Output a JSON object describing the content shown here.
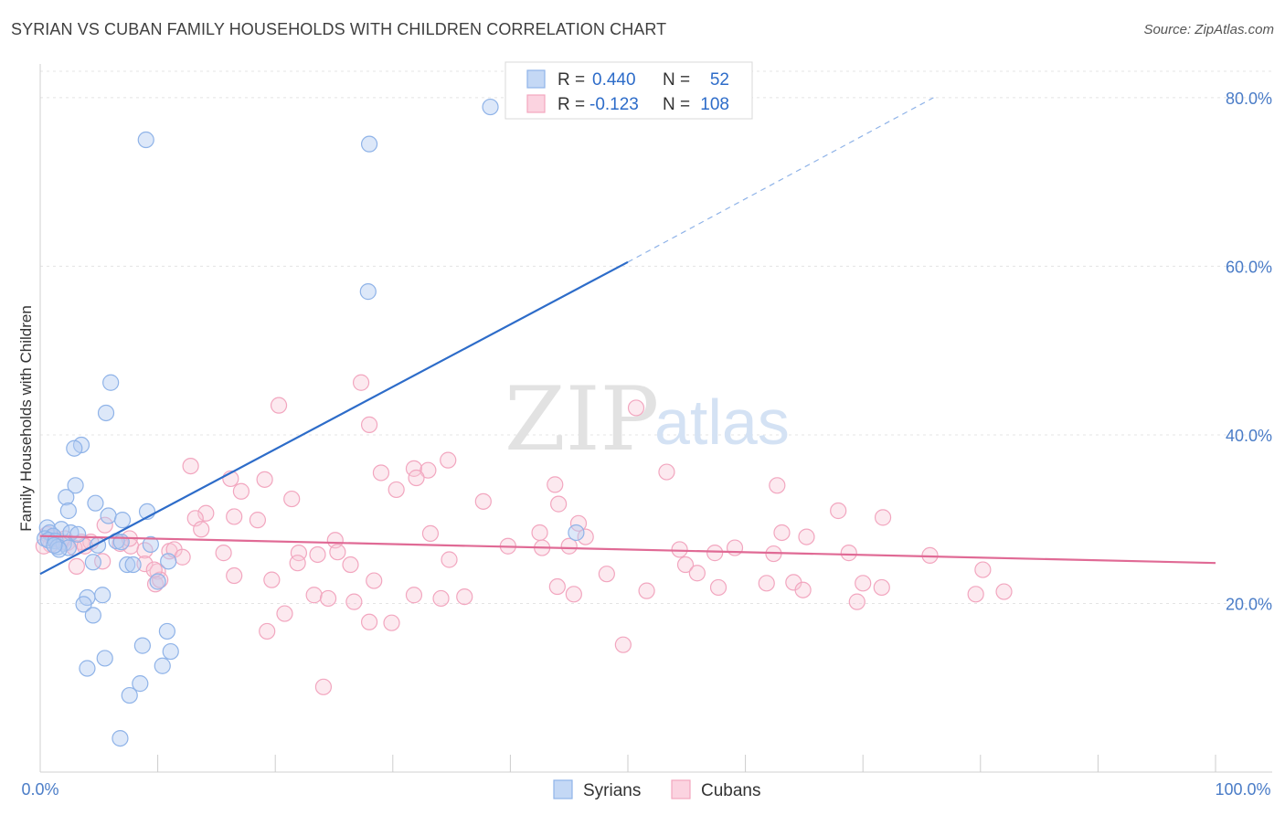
{
  "title": "SYRIAN VS CUBAN FAMILY HOUSEHOLDS WITH CHILDREN CORRELATION CHART",
  "source": "Source: ZipAtlas.com",
  "watermark": {
    "zip": "ZIP",
    "atlas": "atlas"
  },
  "legend_box": {
    "rows": [
      {
        "r_label": "R = ",
        "r_value": "0.440",
        "n_label": "N = ",
        "n_value": "52",
        "color": "#8fb3e8"
      },
      {
        "r_label": "R = ",
        "r_value": "-0.123",
        "n_label": "N = ",
        "n_value": "108",
        "color": "#f2a6bf"
      }
    ]
  },
  "chart_data": {
    "type": "scatter",
    "title": "SYRIAN VS CUBAN FAMILY HOUSEHOLDS WITH CHILDREN CORRELATION CHART",
    "xlabel": "",
    "ylabel": "Family Households with Children",
    "xlim": [
      0,
      100
    ],
    "ylim": [
      0,
      84
    ],
    "x_tick_labels": [
      "0.0%",
      "100.0%"
    ],
    "y_ticks": [
      20,
      40,
      60,
      80
    ],
    "y_tick_labels": [
      "20.0%",
      "40.0%",
      "60.0%",
      "80.0%"
    ],
    "grid": true,
    "legend_position": "bottom-center",
    "series": [
      {
        "name": "Syrians",
        "color": "#8fb3e8",
        "line_color": "#2d6cc9",
        "trend": {
          "x0": 0,
          "y0": 23.5,
          "x1": 50,
          "y1": 60.5,
          "dashed_to_x": 76,
          "dashed_to_y": 80
        },
        "points": [
          [
            38.3,
            78.9
          ],
          [
            9,
            75
          ],
          [
            28,
            74.5
          ],
          [
            27.9,
            57
          ],
          [
            6,
            46.2
          ],
          [
            5.6,
            42.6
          ],
          [
            3.5,
            38.8
          ],
          [
            2.9,
            38.4
          ],
          [
            3.0,
            34.0
          ],
          [
            2.2,
            32.6
          ],
          [
            4.7,
            31.9
          ],
          [
            2.4,
            31.0
          ],
          [
            9.1,
            30.9
          ],
          [
            5.8,
            30.4
          ],
          [
            7.0,
            29.9
          ],
          [
            0.6,
            29.0
          ],
          [
            1.8,
            28.8
          ],
          [
            0.8,
            28.4
          ],
          [
            2.6,
            28.4
          ],
          [
            3.2,
            28.2
          ],
          [
            1.1,
            28.0
          ],
          [
            0.4,
            27.7
          ],
          [
            0.7,
            27.5
          ],
          [
            1.3,
            27.4
          ],
          [
            6.5,
            27.4
          ],
          [
            6.9,
            27.3
          ],
          [
            2.0,
            27.1
          ],
          [
            9.4,
            27.0
          ],
          [
            4.9,
            26.9
          ],
          [
            1.5,
            26.7
          ],
          [
            2.4,
            26.6
          ],
          [
            1.6,
            26.4
          ],
          [
            45.6,
            28.4
          ],
          [
            10.9,
            25.0
          ],
          [
            4.5,
            24.9
          ],
          [
            7.4,
            24.6
          ],
          [
            7.9,
            24.6
          ],
          [
            10.0,
            22.6
          ],
          [
            5.3,
            21.0
          ],
          [
            4.0,
            20.7
          ],
          [
            3.7,
            19.9
          ],
          [
            4.5,
            18.6
          ],
          [
            10.8,
            16.7
          ],
          [
            8.7,
            15.0
          ],
          [
            11.1,
            14.3
          ],
          [
            5.5,
            13.5
          ],
          [
            10.4,
            12.6
          ],
          [
            4.0,
            12.3
          ],
          [
            8.5,
            10.5
          ],
          [
            7.6,
            9.1
          ],
          [
            6.8,
            4.0
          ],
          [
            1.2,
            26.9
          ]
        ]
      },
      {
        "name": "Cubans",
        "color": "#f2a6bf",
        "line_color": "#e06a95",
        "trend": {
          "x0": 0,
          "y0": 28.0,
          "x1": 100,
          "y1": 24.8
        },
        "points": [
          [
            27.3,
            46.2
          ],
          [
            20.3,
            43.5
          ],
          [
            50.7,
            43.2
          ],
          [
            28.0,
            41.2
          ],
          [
            12.8,
            36.3
          ],
          [
            34.7,
            37.0
          ],
          [
            31.8,
            36.0
          ],
          [
            33.0,
            35.8
          ],
          [
            29.0,
            35.5
          ],
          [
            53.3,
            35.6
          ],
          [
            16.2,
            34.8
          ],
          [
            19.1,
            34.7
          ],
          [
            32.0,
            34.9
          ],
          [
            30.3,
            33.5
          ],
          [
            17.1,
            33.3
          ],
          [
            43.8,
            34.1
          ],
          [
            62.7,
            34.0
          ],
          [
            21.4,
            32.4
          ],
          [
            37.7,
            32.1
          ],
          [
            44.1,
            31.8
          ],
          [
            14.1,
            30.7
          ],
          [
            16.5,
            30.3
          ],
          [
            13.2,
            30.1
          ],
          [
            18.5,
            29.9
          ],
          [
            67.9,
            31.0
          ],
          [
            71.7,
            30.2
          ],
          [
            45.8,
            29.5
          ],
          [
            5.5,
            29.3
          ],
          [
            13.7,
            28.8
          ],
          [
            33.2,
            28.3
          ],
          [
            42.5,
            28.4
          ],
          [
            46.4,
            27.9
          ],
          [
            63.1,
            28.4
          ],
          [
            65.2,
            27.9
          ],
          [
            25.1,
            27.5
          ],
          [
            3.5,
            27.3
          ],
          [
            6.8,
            27.1
          ],
          [
            7.7,
            26.8
          ],
          [
            39.8,
            26.8
          ],
          [
            42.7,
            26.6
          ],
          [
            45.0,
            26.8
          ],
          [
            54.4,
            26.4
          ],
          [
            57.4,
            26.0
          ],
          [
            59.1,
            26.6
          ],
          [
            8.9,
            26.3
          ],
          [
            11.0,
            26.2
          ],
          [
            11.4,
            26.4
          ],
          [
            15.6,
            26.0
          ],
          [
            22.0,
            26.0
          ],
          [
            23.6,
            25.8
          ],
          [
            25.3,
            26.1
          ],
          [
            62.4,
            25.9
          ],
          [
            68.8,
            26.0
          ],
          [
            75.7,
            25.7
          ],
          [
            5.3,
            25.0
          ],
          [
            3.1,
            24.4
          ],
          [
            8.9,
            24.7
          ],
          [
            12.1,
            25.5
          ],
          [
            21.9,
            24.8
          ],
          [
            26.4,
            24.6
          ],
          [
            34.8,
            25.2
          ],
          [
            54.9,
            24.6
          ],
          [
            55.9,
            23.6
          ],
          [
            80.2,
            24.0
          ],
          [
            10.0,
            23.8
          ],
          [
            16.5,
            23.3
          ],
          [
            19.7,
            22.8
          ],
          [
            28.4,
            22.7
          ],
          [
            44.0,
            22.0
          ],
          [
            48.2,
            23.5
          ],
          [
            57.7,
            21.9
          ],
          [
            61.8,
            22.4
          ],
          [
            64.1,
            22.5
          ],
          [
            64.9,
            21.6
          ],
          [
            70.0,
            22.4
          ],
          [
            71.6,
            21.9
          ],
          [
            9.8,
            22.3
          ],
          [
            10.2,
            22.8
          ],
          [
            23.3,
            21.0
          ],
          [
            24.5,
            20.6
          ],
          [
            26.7,
            20.2
          ],
          [
            31.8,
            21.0
          ],
          [
            34.1,
            20.6
          ],
          [
            36.1,
            20.8
          ],
          [
            45.4,
            21.1
          ],
          [
            51.6,
            21.5
          ],
          [
            79.6,
            21.1
          ],
          [
            82.0,
            21.4
          ],
          [
            69.5,
            20.2
          ],
          [
            20.8,
            18.8
          ],
          [
            28.0,
            17.8
          ],
          [
            29.9,
            17.7
          ],
          [
            19.3,
            16.7
          ],
          [
            49.6,
            15.1
          ],
          [
            24.1,
            10.1
          ],
          [
            9.7,
            24.0
          ],
          [
            7.6,
            27.7
          ],
          [
            0.6,
            28.2
          ],
          [
            1.0,
            27.8
          ],
          [
            1.4,
            27.6
          ],
          [
            0.9,
            27.0
          ],
          [
            1.8,
            27.3
          ],
          [
            2.1,
            27.7
          ],
          [
            2.3,
            27.2
          ],
          [
            2.9,
            26.6
          ],
          [
            4.3,
            27.3
          ],
          [
            0.3,
            26.8
          ],
          [
            3.8,
            26.8
          ]
        ]
      }
    ]
  }
}
